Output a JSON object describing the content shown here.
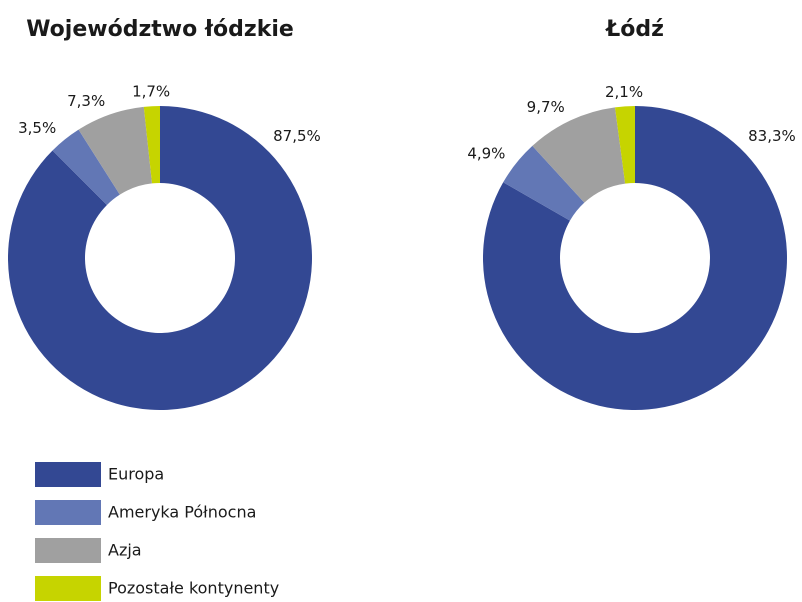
{
  "chart_data": [
    {
      "type": "pie",
      "title": "Województwo łódzkie",
      "categories": [
        "Europa",
        "Ameryka Północna",
        "Azja",
        "Pozostałe kontynenty"
      ],
      "values": [
        87.5,
        3.5,
        7.3,
        1.7
      ],
      "value_labels": [
        "87,5%",
        "3,5%",
        "7,3%",
        "1,7%"
      ],
      "colors": [
        "#334893",
        "#6277b5",
        "#a0a0a0",
        "#c6d400"
      ],
      "donut": true
    },
    {
      "type": "pie",
      "title": "Łódź",
      "categories": [
        "Europa",
        "Ameryka Północna",
        "Azja",
        "Pozostałe kontynenty"
      ],
      "values": [
        83.3,
        4.9,
        9.7,
        2.1
      ],
      "value_labels": [
        "83,3%",
        "4,9%",
        "9,7%",
        "2,1%"
      ],
      "colors": [
        "#334893",
        "#6277b5",
        "#a0a0a0",
        "#c6d400"
      ],
      "donut": true
    }
  ]
}
